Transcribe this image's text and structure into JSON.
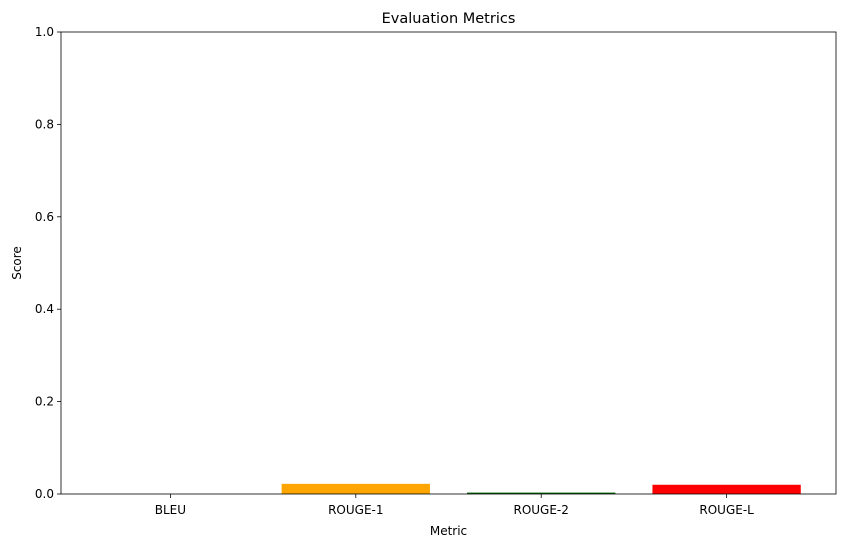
{
  "chart_data": {
    "type": "bar",
    "title": "Evaluation Metrics",
    "xlabel": "Metric",
    "ylabel": "Score",
    "categories": [
      "BLEU",
      "ROUGE-1",
      "ROUGE-2",
      "ROUGE-L"
    ],
    "values": [
      0.0,
      0.022,
      0.003,
      0.02
    ],
    "colors": [
      "#1f77b4",
      "#ffa500",
      "#006400",
      "#ff0000"
    ],
    "ylim": [
      0,
      1
    ],
    "yticks": [
      "0.0",
      "0.2",
      "0.4",
      "0.6",
      "0.8",
      "1.0"
    ],
    "grid": false,
    "legend": "none"
  }
}
